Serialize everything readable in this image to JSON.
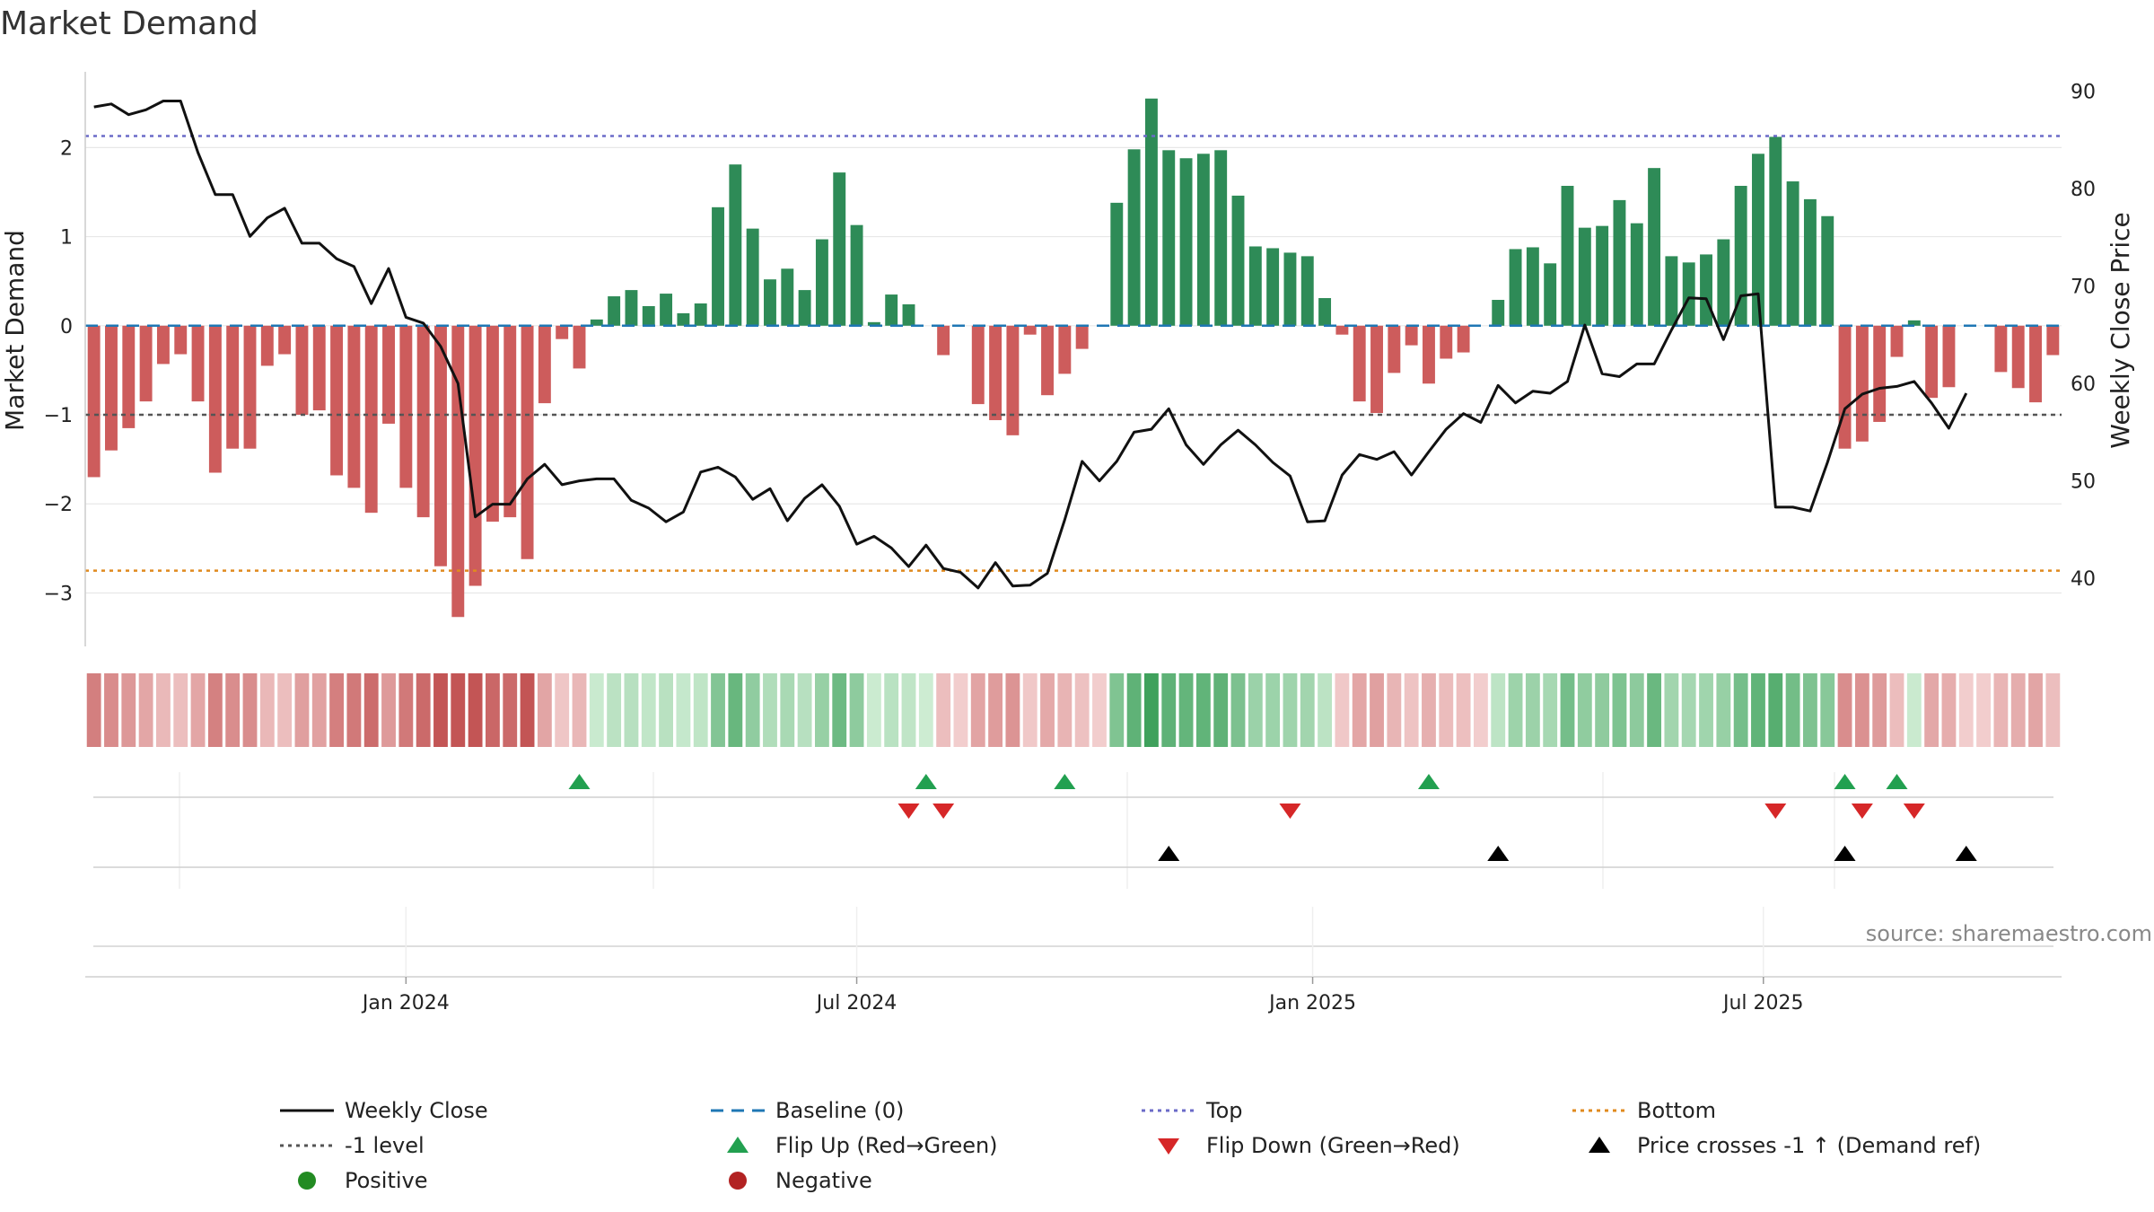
{
  "chart_data": {
    "type": "bar",
    "title": "Market Demand",
    "ylabel_left": "Market Demand",
    "ylabel_right": "Weekly Close Price",
    "source": "source: sharemaestro.com",
    "ylim_left": [
      -3.6,
      2.85
    ],
    "ylim_right": [
      33,
      92
    ],
    "yticks_left": [
      2,
      1,
      0,
      -1,
      -2,
      -3
    ],
    "ytick_labels_left": [
      "2",
      "1",
      "0",
      "−1",
      "−2",
      "−3"
    ],
    "yticks_right": [
      90,
      80,
      70,
      60,
      50,
      40
    ],
    "ytick_labels_right": [
      "90",
      "80",
      "70",
      "60",
      "50",
      "40"
    ],
    "x_ticks": [
      {
        "week": 18,
        "label": "Jan 2024"
      },
      {
        "week": 44,
        "label": "Jul 2024"
      },
      {
        "week": 70.3,
        "label": "Jan 2025"
      },
      {
        "week": 96.3,
        "label": "Jul 2025"
      }
    ],
    "levels": {
      "top": 2.13,
      "bottom": -2.75,
      "minus_one": -1,
      "baseline": 0
    },
    "demand": [
      -1.7,
      -1.4,
      -1.15,
      -0.85,
      -0.43,
      -0.32,
      -0.85,
      -1.65,
      -1.38,
      -1.38,
      -0.45,
      -0.32,
      -1.0,
      -0.95,
      -1.68,
      -1.82,
      -2.1,
      -1.1,
      -1.82,
      -2.15,
      -2.7,
      -3.27,
      -2.92,
      -2.2,
      -2.15,
      -2.62,
      -0.87,
      -0.15,
      -0.48,
      0.07,
      0.33,
      0.4,
      0.22,
      0.36,
      0.14,
      0.25,
      1.33,
      1.81,
      1.09,
      0.52,
      0.64,
      0.4,
      0.97,
      1.72,
      1.13,
      0.04,
      0.35,
      0.24,
      0.0,
      -0.33,
      0.0,
      -0.88,
      -1.06,
      -1.23,
      -0.1,
      -0.78,
      -0.54,
      -0.26,
      0.0,
      1.38,
      1.98,
      2.55,
      1.97,
      1.88,
      1.93,
      1.97,
      1.46,
      0.89,
      0.87,
      0.82,
      0.78,
      0.31,
      -0.1,
      -0.85,
      -0.98,
      -0.53,
      -0.22,
      -0.65,
      -0.37,
      -0.3,
      0.0,
      0.29,
      0.86,
      0.88,
      0.7,
      1.57,
      1.1,
      1.12,
      1.41,
      1.15,
      1.77,
      0.78,
      0.71,
      0.8,
      0.97,
      1.57,
      1.93,
      2.12,
      1.62,
      1.42,
      1.23,
      -1.38,
      -1.3,
      -1.08,
      -0.35,
      0.06,
      -0.81,
      -0.69,
      0.0,
      0.0,
      -0.52,
      -0.7,
      -0.86,
      -0.33
    ],
    "price": [
      88.4,
      88.7,
      87.6,
      88.1,
      89.0,
      89.0,
      83.7,
      79.4,
      79.4,
      75.1,
      77.0,
      78.0,
      74.4,
      74.4,
      72.8,
      72.0,
      68.2,
      71.8,
      66.8,
      66.2,
      63.8,
      60.0,
      46.3,
      47.6,
      47.6,
      50.2,
      51.7,
      49.6,
      50.0,
      50.2,
      50.2,
      48.0,
      47.2,
      45.8,
      46.8,
      50.9,
      51.4,
      50.4,
      48.1,
      49.2,
      45.9,
      48.2,
      49.6,
      47.4,
      43.5,
      44.3,
      43.1,
      41.2,
      43.4,
      41.0,
      40.6,
      39.0,
      41.6,
      39.2,
      39.3,
      40.5,
      46.0,
      52.0,
      50.0,
      52.0,
      55.0,
      55.3,
      57.4,
      53.7,
      51.7,
      53.7,
      55.2,
      53.7,
      51.9,
      50.5,
      45.8,
      45.9,
      50.6,
      52.7,
      52.2,
      53.0,
      50.6,
      53.0,
      55.3,
      56.9,
      56.0,
      59.8,
      58.0,
      59.2,
      59.0,
      60.2,
      66.0,
      61.0,
      60.7,
      62.0,
      62.0,
      65.5,
      68.8,
      68.7,
      64.5,
      69.0,
      69.2,
      47.3,
      47.3,
      46.9,
      51.9,
      57.4,
      58.9,
      59.5,
      59.7,
      60.2,
      58.0,
      55.4,
      59.0
    ],
    "flip_up_weeks": [
      28,
      48,
      56,
      77,
      101,
      104
    ],
    "flip_down_weeks": [
      47,
      49,
      69,
      97,
      102,
      105
    ],
    "price_cross_weeks": [
      62,
      81,
      101,
      108
    ],
    "legend": [
      {
        "label": "Weekly Close",
        "symbol": "line",
        "color": "#111111"
      },
      {
        "label": "Baseline (0)",
        "symbol": "dash",
        "color": "#1f77b4"
      },
      {
        "label": "Top",
        "symbol": "dot",
        "color": "#6b6bc8"
      },
      {
        "label": "Bottom",
        "symbol": "dot",
        "color": "#e08a1e"
      },
      {
        "label": "-1 level",
        "symbol": "dot",
        "color": "#555555"
      },
      {
        "label": "Flip Up (Red→Green)",
        "symbol": "tri-up",
        "color": "#22a050"
      },
      {
        "label": "Flip Down (Green→Red)",
        "symbol": "tri-down",
        "color": "#d62728"
      },
      {
        "label": "Price crosses -1 ↑ (Demand ref)",
        "symbol": "tri-up",
        "color": "#000000"
      },
      {
        "label": "Positive",
        "symbol": "circle",
        "color": "#228b22"
      },
      {
        "label": "Negative",
        "symbol": "circle",
        "color": "#b22222"
      }
    ],
    "colors": {
      "positive_bar": "#2e8b57",
      "negative_bar": "#cd5c5c",
      "price_line": "#111111",
      "baseline": "#1f77b4",
      "top": "#6b6bc8",
      "bottom": "#e08a1e",
      "minus_one": "#555555",
      "grid": "#e8e8e8",
      "axis": "#cccccc"
    }
  }
}
